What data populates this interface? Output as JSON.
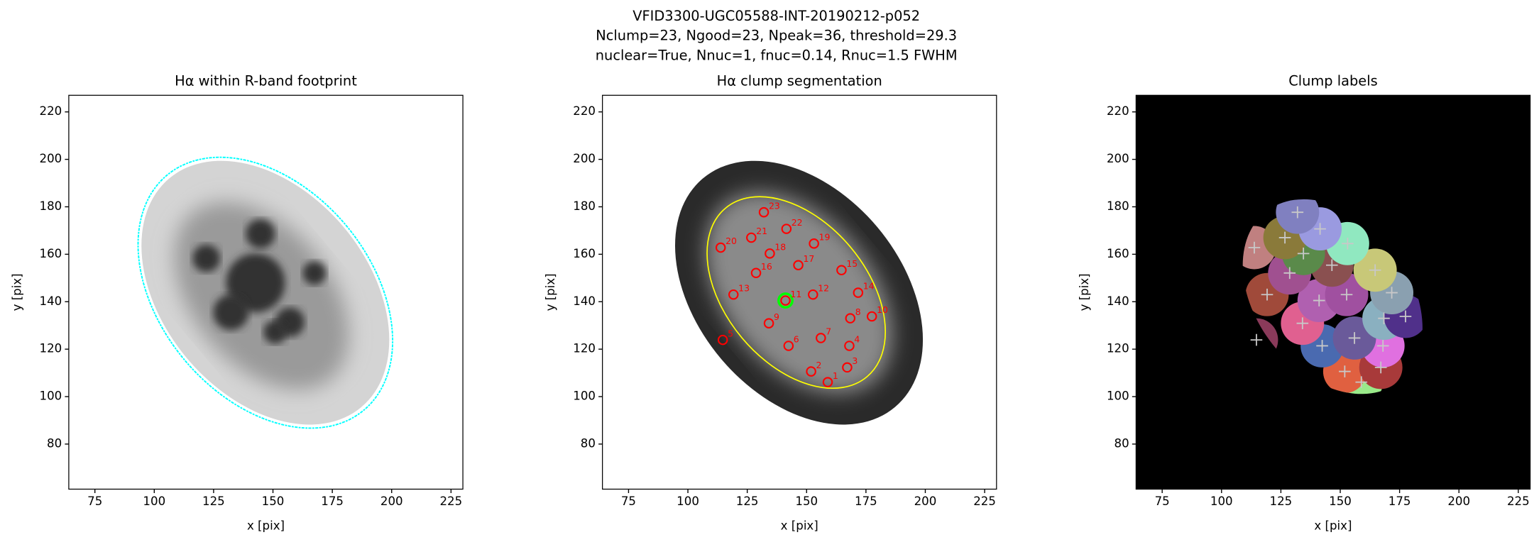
{
  "figure": {
    "title_lines": [
      "VFID3300-UGC05588-INT-20190212-p052",
      "Nclump=23, Ngood=23, Npeak=36, threshold=29.3",
      "nuclear=True, Nnuc=1, fnuc=0.14, Rnuc=1.5 FWHM"
    ]
  },
  "chart_data": [
    {
      "type": "image",
      "title": "Hα within R-band footprint",
      "xlabel": "x [pix]",
      "ylabel": "y [pix]",
      "xlim": [
        64,
        230
      ],
      "ylim": [
        61,
        227
      ],
      "xticks": [
        75,
        100,
        125,
        150,
        175,
        200,
        225
      ],
      "yticks": [
        80,
        100,
        120,
        140,
        160,
        180,
        200,
        220
      ],
      "contour_color": "#00ffff"
    },
    {
      "type": "segmentation",
      "title": "Hα clump segmentation",
      "xlabel": "x [pix]",
      "ylabel": "y [pix]",
      "xlim": [
        64,
        230
      ],
      "ylim": [
        61,
        227
      ],
      "xticks": [
        75,
        100,
        125,
        150,
        175,
        200,
        225
      ],
      "yticks": [
        80,
        100,
        120,
        140,
        160,
        180,
        200,
        220
      ],
      "contour_color": "#ffff00",
      "marker_color": "#ff0000",
      "clumps": {
        "labels": [
          1,
          2,
          3,
          4,
          5,
          6,
          7,
          8,
          9,
          10,
          11,
          12,
          13,
          14,
          15,
          16,
          17,
          18,
          19,
          20,
          21,
          22,
          23
        ],
        "x": [
          158.9,
          151.9,
          167.1,
          168.0,
          114.7,
          142.4,
          156.0,
          168.4,
          134.1,
          177.5,
          141.1,
          152.7,
          119.2,
          171.7,
          164.7,
          128.7,
          146.5,
          134.5,
          153.1,
          113.8,
          126.7,
          141.5,
          132.0
        ],
        "y": [
          106.1,
          110.6,
          112.3,
          121.4,
          123.9,
          121.4,
          124.7,
          133.0,
          130.9,
          133.8,
          140.5,
          143.0,
          143.0,
          143.8,
          153.3,
          152.1,
          155.4,
          160.3,
          164.5,
          162.8,
          167.0,
          170.7,
          177.7
        ]
      },
      "nucleus": {
        "x": 141.1,
        "y": 140.5,
        "color": "#00ff00"
      }
    },
    {
      "type": "labels",
      "title": "Clump labels",
      "xlabel": "x [pix]",
      "ylabel": "y [pix]",
      "xlim": [
        64,
        230
      ],
      "ylim": [
        61,
        227
      ],
      "xticks": [
        75,
        100,
        125,
        150,
        175,
        200,
        225
      ],
      "yticks": [
        80,
        100,
        120,
        140,
        160,
        180,
        200,
        220
      ],
      "markers": {
        "x": [
          158.9,
          151.9,
          167.1,
          168.0,
          114.7,
          142.4,
          156.0,
          168.4,
          134.1,
          177.5,
          141.1,
          152.7,
          119.2,
          171.7,
          164.7,
          128.7,
          146.5,
          134.5,
          153.1,
          113.8,
          126.7,
          141.5,
          132.0
        ],
        "y": [
          106.1,
          110.6,
          112.3,
          121.4,
          123.9,
          121.4,
          124.7,
          133.0,
          130.9,
          133.8,
          140.5,
          143.0,
          143.0,
          143.8,
          153.3,
          152.1,
          155.4,
          160.3,
          164.5,
          162.8,
          167.0,
          170.7,
          177.7
        ]
      },
      "colors": [
        "#9aea8a",
        "#e06040",
        "#a83a3a",
        "#e070e0",
        "#8a3a5a",
        "#4a6ab0",
        "#6a5a9a",
        "#8ab0c0",
        "#e06090",
        "#50308a",
        "#b060b0",
        "#a050a0",
        "#a04a3a",
        "#8aa0b0",
        "#c8c878",
        "#a05090",
        "#8a5050",
        "#5a8a4a",
        "#90e8c0",
        "#c08080",
        "#8a7a3a",
        "#9a9ae0",
        "#8080c0"
      ],
      "marker_color": "#c8c8c8"
    }
  ]
}
